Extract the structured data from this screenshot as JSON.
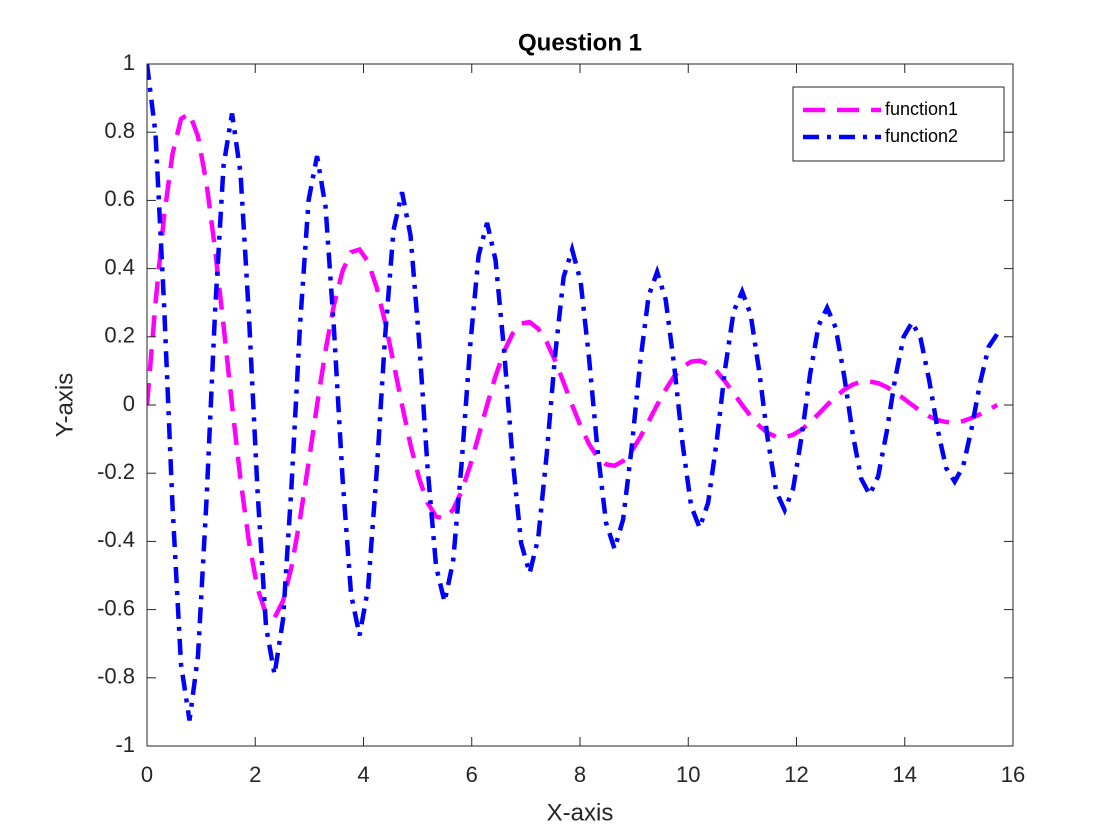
{
  "chart_data": {
    "type": "line",
    "title": "Question 1",
    "x_label": "X-axis",
    "y_label": "Y-axis",
    "x": [
      0,
      0.157,
      0.314,
      0.471,
      0.628,
      0.785,
      0.942,
      1.1,
      1.257,
      1.414,
      1.571,
      1.728,
      1.885,
      2.042,
      2.199,
      2.356,
      2.513,
      2.67,
      2.827,
      2.985,
      3.142,
      3.299,
      3.456,
      3.613,
      3.77,
      3.927,
      4.084,
      4.241,
      4.398,
      4.555,
      4.712,
      4.869,
      5.027,
      5.184,
      5.341,
      5.498,
      5.655,
      5.812,
      5.969,
      6.126,
      6.283,
      6.44,
      6.597,
      6.754,
      6.912,
      7.069,
      7.226,
      7.383,
      7.54,
      7.697,
      7.854,
      8.011,
      8.168,
      8.325,
      8.482,
      8.639,
      8.796,
      8.954,
      9.111,
      9.268,
      9.425,
      9.582,
      9.739,
      9.896,
      10.053,
      10.21,
      10.367,
      10.524,
      10.681,
      10.838,
      10.996,
      11.153,
      11.31,
      11.467,
      11.624,
      11.781,
      11.938,
      12.095,
      12.252,
      12.409,
      12.566,
      12.723,
      12.881,
      13.038,
      13.195,
      13.352,
      13.509,
      13.666,
      13.823,
      13.98,
      14.137,
      14.294,
      14.451,
      14.608,
      14.765,
      14.923,
      15.08,
      15.237,
      15.394,
      15.551,
      15.708
    ],
    "series": [
      {
        "name": "function1",
        "color": "#ff00ff",
        "line_style": "dashed",
        "values": [
          0,
          0.299,
          0.552,
          0.736,
          0.839,
          0.855,
          0.788,
          0.649,
          0.457,
          0.233,
          0,
          -0.219,
          -0.403,
          -0.538,
          -0.613,
          -0.624,
          -0.575,
          -0.474,
          -0.334,
          -0.17,
          0,
          0.16,
          0.295,
          0.393,
          0.448,
          0.456,
          0.42,
          0.346,
          0.244,
          0.124,
          0,
          -0.117,
          -0.215,
          -0.287,
          -0.327,
          -0.333,
          -0.307,
          -0.253,
          -0.178,
          -0.091,
          0,
          0.085,
          0.157,
          0.209,
          0.239,
          0.243,
          0.224,
          0.185,
          0.13,
          0.066,
          0,
          -0.062,
          -0.115,
          -0.153,
          -0.174,
          -0.178,
          -0.164,
          -0.135,
          -0.095,
          -0.048,
          0,
          0.045,
          0.084,
          0.112,
          0.127,
          0.13,
          0.12,
          0.099,
          0.069,
          0.035,
          0,
          -0.033,
          -0.061,
          -0.082,
          -0.093,
          -0.095,
          -0.087,
          -0.072,
          -0.051,
          -0.026,
          0,
          0.024,
          0.045,
          0.06,
          0.068,
          0.069,
          0.064,
          0.053,
          0.037,
          0.019,
          0,
          -0.018,
          -0.033,
          -0.044,
          -0.05,
          -0.051,
          -0.047,
          -0.038,
          -0.027,
          -0.014,
          0
        ]
      },
      {
        "name": "function2",
        "color": "#0000ff",
        "line_style": "dashdot",
        "values": [
          1,
          0.796,
          0.299,
          -0.295,
          -0.76,
          -0.925,
          -0.736,
          -0.277,
          0.273,
          0.702,
          0.855,
          0.68,
          0.256,
          -0.252,
          -0.65,
          -0.79,
          -0.629,
          -0.237,
          0.233,
          0.6,
          0.73,
          0.581,
          0.218,
          -0.215,
          -0.555,
          -0.676,
          -0.538,
          -0.202,
          0.199,
          0.513,
          0.624,
          0.497,
          0.187,
          -0.184,
          -0.474,
          -0.577,
          -0.459,
          -0.173,
          0.17,
          0.438,
          0.534,
          0.425,
          0.16,
          -0.157,
          -0.405,
          -0.493,
          -0.393,
          -0.148,
          0.146,
          0.375,
          0.456,
          0.363,
          0.136,
          -0.134,
          -0.346,
          -0.422,
          -0.336,
          -0.126,
          0.124,
          0.32,
          0.39,
          0.31,
          0.117,
          -0.115,
          -0.296,
          -0.36,
          -0.287,
          -0.108,
          0.106,
          0.274,
          0.333,
          0.265,
          0.1,
          -0.098,
          -0.253,
          -0.308,
          -0.245,
          -0.092,
          0.091,
          0.234,
          0.285,
          0.227,
          0.085,
          -0.084,
          -0.216,
          -0.263,
          -0.209,
          -0.079,
          0.078,
          0.2,
          0.243,
          0.194,
          0.073,
          -0.072,
          -0.185,
          -0.225,
          -0.179,
          -0.067,
          0.066,
          0.171,
          0.208
        ]
      }
    ],
    "xlim": [
      0,
      16
    ],
    "xticks": [
      0,
      2,
      4,
      6,
      8,
      10,
      12,
      14,
      16
    ],
    "ylim": [
      -1,
      1
    ],
    "yticks": [
      -1,
      -0.8,
      -0.6,
      -0.4,
      -0.2,
      0,
      0.2,
      0.4,
      0.6,
      0.8,
      1
    ],
    "grid": false,
    "legend": "northeast"
  }
}
